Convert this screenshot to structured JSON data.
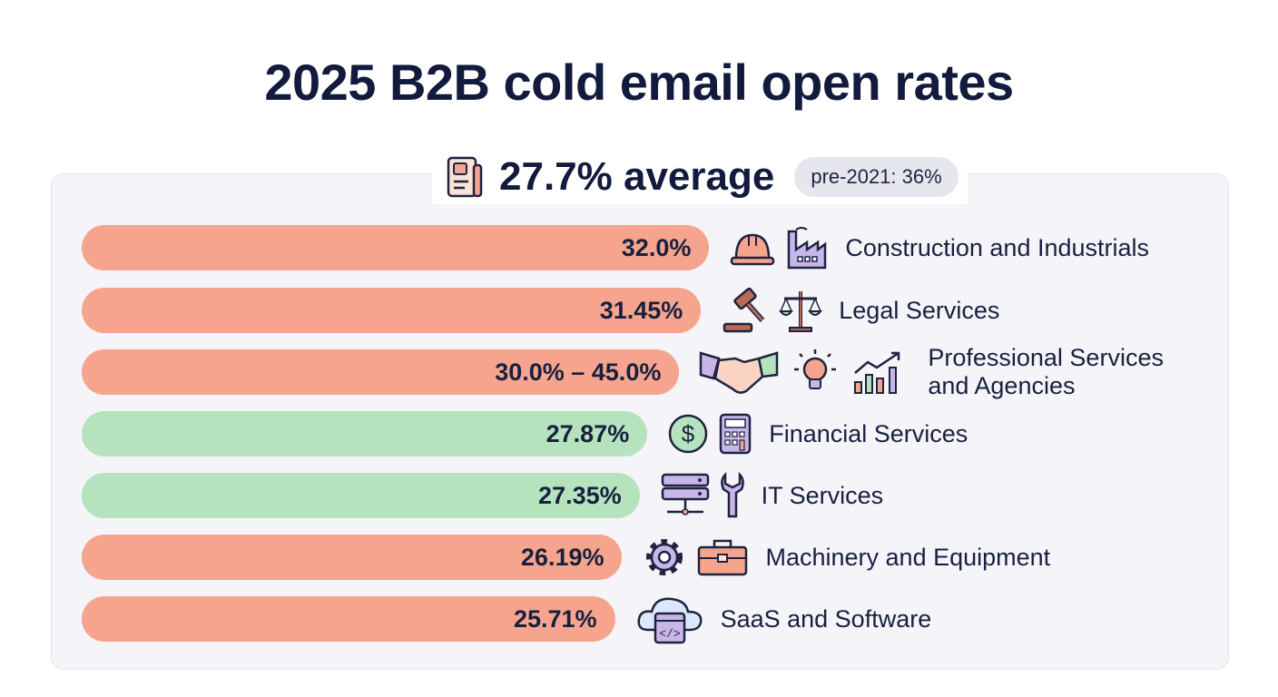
{
  "chart_data": {
    "type": "bar",
    "orientation": "horizontal",
    "title": "2025 B2B cold email open rates",
    "average_label": "27.7% average",
    "average": 27.7,
    "comparison_label": "pre-2021: 36%",
    "comparison": 36,
    "colors": {
      "above": "#f6a48d",
      "below": "#b4e3bd"
    },
    "categories": [
      "Construction and Industrials",
      "Legal Services",
      "Professional Services and Agencies",
      "Financial Services",
      "IT Services",
      "Machinery and Equipment",
      "SaaS and Software"
    ],
    "values": [
      32.0,
      31.45,
      30.0,
      27.87,
      27.35,
      26.19,
      25.71
    ],
    "value_labels": [
      "32.0%",
      "31.45%",
      "30.0% – 45.0%",
      "27.87%",
      "27.35%",
      "26.19%",
      "25.71%"
    ],
    "ranges": [
      null,
      null,
      [
        30.0,
        45.0
      ],
      null,
      null,
      null,
      null
    ],
    "highlight": [
      "above",
      "above",
      "above",
      "below",
      "below",
      "above",
      "above"
    ],
    "icons": [
      [
        "hard-hat-icon",
        "factory-icon"
      ],
      [
        "gavel-icon",
        "scales-icon"
      ],
      [
        "handshake-icon",
        "lightbulb-icon",
        "growth-chart-icon"
      ],
      [
        "dollar-coin-icon",
        "calculator-icon"
      ],
      [
        "server-icon",
        "wrench-icon"
      ],
      [
        "gear-icon",
        "toolbox-icon"
      ],
      [
        "cloud-code-icon"
      ]
    ]
  }
}
